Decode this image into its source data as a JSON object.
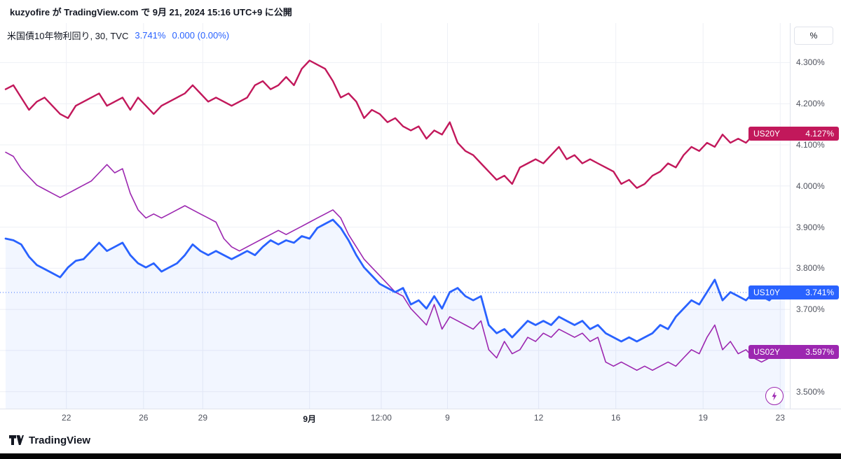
{
  "header": {
    "attribution": "kuzyofire が TradingView.com で 9月 21, 2024 15:16 UTC+9 に公開"
  },
  "legend": {
    "symbol_title": "米国債10年物利回り, 30, TVC",
    "last_value": "3.741%",
    "change_text": "0.000 (0.00%)"
  },
  "price_scale": {
    "unit_label": "%"
  },
  "footer": {
    "brand": "TradingView"
  },
  "colors": {
    "us20y": "#C2185B",
    "us10y": "#2962FF",
    "us02y": "#9C27B0",
    "grid": "#eef0f6",
    "axis_border": "#e0e3eb"
  },
  "chart_data": {
    "type": "line",
    "title": "米国債10年物利回り, 30, TVC",
    "timeframe": "30",
    "exchange": "TVC",
    "y_axis": {
      "min": 3.457,
      "max": 4.396,
      "unit": "%",
      "gridlines": [
        4.3,
        4.2,
        4.1,
        4.0,
        3.9,
        3.8,
        3.7,
        3.6,
        3.5
      ]
    },
    "x_axis": {
      "ticks": [
        {
          "label": "22",
          "x": 7.8
        },
        {
          "label": "26",
          "x": 17.7
        },
        {
          "label": "29",
          "x": 25.3
        },
        {
          "label": "9月",
          "x": 39.0,
          "major": true
        },
        {
          "label": "12:00",
          "x": 48.2
        },
        {
          "label": "9",
          "x": 56.7
        },
        {
          "label": "12",
          "x": 68.4
        },
        {
          "label": "16",
          "x": 78.3
        },
        {
          "label": "19",
          "x": 89.5
        },
        {
          "label": "23",
          "x": 99.4
        }
      ]
    },
    "x": [
      0,
      1,
      2,
      3,
      4,
      5,
      6,
      7,
      8,
      9,
      10,
      11,
      12,
      13,
      14,
      15,
      16,
      17,
      18,
      19,
      20,
      21,
      22,
      23,
      24,
      25,
      26,
      27,
      28,
      29,
      30,
      31,
      32,
      33,
      34,
      35,
      36,
      37,
      38,
      39,
      40,
      41,
      42,
      43,
      44,
      45,
      46,
      47,
      48,
      49,
      50,
      51,
      52,
      53,
      54,
      55,
      56,
      57,
      58,
      59,
      60,
      61,
      62,
      63,
      64,
      65,
      66,
      67,
      68,
      69,
      70,
      71,
      72,
      73,
      74,
      75,
      76,
      77,
      78,
      79,
      80,
      81,
      82,
      83,
      84,
      85,
      86,
      87,
      88,
      89,
      90,
      91,
      92,
      93,
      94,
      95,
      96,
      97,
      98,
      99,
      100
    ],
    "series": [
      {
        "name": "US20Y",
        "color": "#C2185B",
        "stroke_width": 2.4,
        "draw_order": 1,
        "last": 4.127,
        "last_label": "4.127%",
        "values": [
          4.235,
          4.245,
          4.215,
          4.185,
          4.205,
          4.215,
          4.195,
          4.175,
          4.165,
          4.195,
          4.205,
          4.215,
          4.225,
          4.195,
          4.205,
          4.215,
          4.185,
          4.215,
          4.195,
          4.175,
          4.195,
          4.205,
          4.215,
          4.225,
          4.245,
          4.225,
          4.205,
          4.215,
          4.205,
          4.195,
          4.205,
          4.215,
          4.245,
          4.255,
          4.235,
          4.245,
          4.265,
          4.245,
          4.285,
          4.305,
          4.295,
          4.285,
          4.255,
          4.215,
          4.225,
          4.205,
          4.165,
          4.185,
          4.175,
          4.155,
          4.165,
          4.145,
          4.135,
          4.145,
          4.115,
          4.135,
          4.125,
          4.155,
          4.105,
          4.085,
          4.075,
          4.055,
          4.035,
          4.015,
          4.025,
          4.005,
          4.045,
          4.055,
          4.065,
          4.055,
          4.075,
          4.095,
          4.065,
          4.075,
          4.055,
          4.065,
          4.055,
          4.045,
          4.035,
          4.005,
          4.015,
          3.995,
          4.005,
          4.025,
          4.035,
          4.055,
          4.045,
          4.075,
          4.095,
          4.085,
          4.105,
          4.095,
          4.125,
          4.105,
          4.115,
          4.105,
          4.125,
          4.115,
          4.125,
          4.135,
          4.127
        ]
      },
      {
        "name": "US10Y",
        "color": "#2962FF",
        "stroke_width": 2.8,
        "draw_order": 3,
        "area": true,
        "price_line": true,
        "last": 3.741,
        "last_label": "3.741%",
        "values": [
          3.872,
          3.868,
          3.858,
          3.828,
          3.808,
          3.798,
          3.788,
          3.778,
          3.802,
          3.818,
          3.822,
          3.842,
          3.862,
          3.842,
          3.852,
          3.862,
          3.832,
          3.812,
          3.802,
          3.812,
          3.792,
          3.802,
          3.812,
          3.832,
          3.858,
          3.842,
          3.832,
          3.842,
          3.832,
          3.822,
          3.832,
          3.842,
          3.832,
          3.852,
          3.868,
          3.858,
          3.868,
          3.862,
          3.878,
          3.872,
          3.898,
          3.908,
          3.918,
          3.898,
          3.868,
          3.832,
          3.802,
          3.782,
          3.762,
          3.752,
          3.742,
          3.752,
          3.712,
          3.722,
          3.702,
          3.732,
          3.702,
          3.742,
          3.752,
          3.732,
          3.722,
          3.732,
          3.662,
          3.642,
          3.652,
          3.632,
          3.652,
          3.672,
          3.662,
          3.672,
          3.662,
          3.682,
          3.672,
          3.662,
          3.672,
          3.652,
          3.662,
          3.642,
          3.632,
          3.622,
          3.632,
          3.622,
          3.632,
          3.642,
          3.662,
          3.652,
          3.682,
          3.702,
          3.722,
          3.712,
          3.742,
          3.772,
          3.722,
          3.742,
          3.732,
          3.722,
          3.742,
          3.732,
          3.722,
          3.742,
          3.741
        ]
      },
      {
        "name": "US02Y",
        "color": "#9C27B0",
        "stroke_width": 1.6,
        "draw_order": 0,
        "last": 3.597,
        "last_label": "3.597%",
        "values": [
          4.082,
          4.072,
          4.042,
          4.022,
          4.002,
          3.992,
          3.982,
          3.972,
          3.982,
          3.992,
          4.002,
          4.012,
          4.032,
          4.052,
          4.032,
          4.042,
          3.982,
          3.942,
          3.922,
          3.932,
          3.922,
          3.932,
          3.942,
          3.952,
          3.942,
          3.932,
          3.922,
          3.912,
          3.872,
          3.852,
          3.842,
          3.852,
          3.862,
          3.872,
          3.882,
          3.892,
          3.882,
          3.892,
          3.902,
          3.912,
          3.922,
          3.932,
          3.942,
          3.922,
          3.882,
          3.852,
          3.822,
          3.802,
          3.782,
          3.762,
          3.742,
          3.732,
          3.702,
          3.682,
          3.662,
          3.712,
          3.652,
          3.682,
          3.672,
          3.662,
          3.652,
          3.672,
          3.602,
          3.582,
          3.622,
          3.592,
          3.602,
          3.632,
          3.622,
          3.642,
          3.632,
          3.652,
          3.642,
          3.632,
          3.642,
          3.622,
          3.632,
          3.572,
          3.562,
          3.572,
          3.562,
          3.552,
          3.562,
          3.552,
          3.562,
          3.572,
          3.562,
          3.582,
          3.602,
          3.592,
          3.632,
          3.662,
          3.602,
          3.622,
          3.592,
          3.602,
          3.582,
          3.572,
          3.582,
          3.592,
          3.597
        ]
      }
    ]
  }
}
